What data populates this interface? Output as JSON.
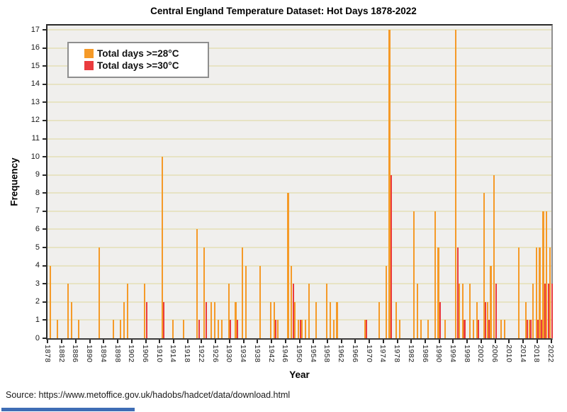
{
  "title": "Central England Temperature Dataset: Hot Days 1878-2022",
  "source": "Source: https://www.metoffice.gov.uk/hadobs/hadcet/data/download.html",
  "colors": {
    "orange": "#f59a28",
    "red": "#ea3b3e",
    "plot_background": "#f0efed",
    "gridline": "#e7e3c4",
    "strip_blue": "#3e6db5"
  },
  "legend": {
    "items": [
      {
        "label": "Total days >=28°C",
        "color": "#f59a28"
      },
      {
        "label": "Total days >=30°C",
        "color": "#ea3b3e"
      }
    ]
  },
  "chart_data": {
    "type": "bar",
    "title": "Central England Temperature Dataset: Hot Days 1878-2022",
    "xlabel": "Year",
    "ylabel": "Frequency",
    "x_range": [
      1878,
      2022
    ],
    "ylim": [
      0,
      17
    ],
    "grid": "horizontal",
    "legend_position": "top-left-inside",
    "x_ticks": [
      1878,
      1882,
      1886,
      1890,
      1894,
      1898,
      1902,
      1906,
      1910,
      1914,
      1918,
      1922,
      1926,
      1930,
      1934,
      1938,
      1942,
      1946,
      1950,
      1954,
      1958,
      1962,
      1966,
      1970,
      1974,
      1978,
      1982,
      1986,
      1990,
      1994,
      1998,
      2002,
      2006,
      2010,
      2014,
      2018,
      2022
    ],
    "y_ticks": [
      0,
      1,
      2,
      3,
      4,
      5,
      6,
      7,
      8,
      9,
      10,
      11,
      12,
      13,
      14,
      15,
      16,
      17
    ],
    "series": [
      {
        "name": "Total days >=28°C",
        "color": "#f59a28",
        "points": [
          [
            1879,
            4
          ],
          [
            1881,
            1
          ],
          [
            1884,
            3
          ],
          [
            1885,
            2
          ],
          [
            1887,
            1
          ],
          [
            1893,
            5
          ],
          [
            1897,
            1
          ],
          [
            1899,
            1
          ],
          [
            1900,
            2
          ],
          [
            1901,
            3
          ],
          [
            1906,
            3
          ],
          [
            1911,
            10
          ],
          [
            1914,
            1
          ],
          [
            1917,
            1
          ],
          [
            1921,
            6
          ],
          [
            1923,
            5
          ],
          [
            1925,
            2
          ],
          [
            1926,
            2
          ],
          [
            1927,
            1
          ],
          [
            1928,
            1
          ],
          [
            1930,
            3
          ],
          [
            1932,
            2
          ],
          [
            1934,
            5
          ],
          [
            1935,
            4
          ],
          [
            1939,
            4
          ],
          [
            1942,
            2
          ],
          [
            1943,
            2
          ],
          [
            1944,
            1
          ],
          [
            1947,
            8
          ],
          [
            1948,
            4
          ],
          [
            1949,
            2
          ],
          [
            1950,
            1
          ],
          [
            1951,
            1
          ],
          [
            1952,
            1
          ],
          [
            1953,
            3
          ],
          [
            1955,
            2
          ],
          [
            1958,
            3
          ],
          [
            1959,
            2
          ],
          [
            1960,
            1
          ],
          [
            1961,
            2
          ],
          [
            1969,
            1
          ],
          [
            1973,
            2
          ],
          [
            1975,
            4
          ],
          [
            1976,
            17
          ],
          [
            1978,
            2
          ],
          [
            1979,
            1
          ],
          [
            1983,
            7
          ],
          [
            1984,
            3
          ],
          [
            1985,
            1
          ],
          [
            1987,
            1
          ],
          [
            1989,
            7
          ],
          [
            1990,
            5
          ],
          [
            1992,
            1
          ],
          [
            1995,
            17
          ],
          [
            1996,
            3
          ],
          [
            1997,
            3
          ],
          [
            1999,
            3
          ],
          [
            2000,
            1
          ],
          [
            2001,
            2
          ],
          [
            2003,
            8
          ],
          [
            2004,
            2
          ],
          [
            2005,
            4
          ],
          [
            2006,
            9
          ],
          [
            2008,
            1
          ],
          [
            2009,
            1
          ],
          [
            2013,
            5
          ],
          [
            2015,
            2
          ],
          [
            2016,
            1
          ],
          [
            2017,
            3
          ],
          [
            2018,
            5
          ],
          [
            2019,
            5
          ],
          [
            2020,
            7
          ],
          [
            2021,
            7
          ],
          [
            2022,
            5
          ]
        ]
      },
      {
        "name": "Total days >=30°C",
        "color": "#ea3b3e",
        "points": [
          [
            1906,
            2
          ],
          [
            1911,
            2
          ],
          [
            1921,
            1
          ],
          [
            1923,
            2
          ],
          [
            1930,
            1
          ],
          [
            1932,
            1
          ],
          [
            1943,
            1
          ],
          [
            1948,
            3
          ],
          [
            1950,
            1
          ],
          [
            1969,
            1
          ],
          [
            1976,
            9
          ],
          [
            1990,
            2
          ],
          [
            1995,
            5
          ],
          [
            1997,
            1
          ],
          [
            2001,
            1
          ],
          [
            2003,
            2
          ],
          [
            2004,
            1
          ],
          [
            2006,
            3
          ],
          [
            2015,
            1
          ],
          [
            2016,
            1
          ],
          [
            2018,
            1
          ],
          [
            2019,
            1
          ],
          [
            2020,
            3
          ],
          [
            2021,
            3
          ],
          [
            2022,
            3
          ]
        ]
      }
    ]
  }
}
